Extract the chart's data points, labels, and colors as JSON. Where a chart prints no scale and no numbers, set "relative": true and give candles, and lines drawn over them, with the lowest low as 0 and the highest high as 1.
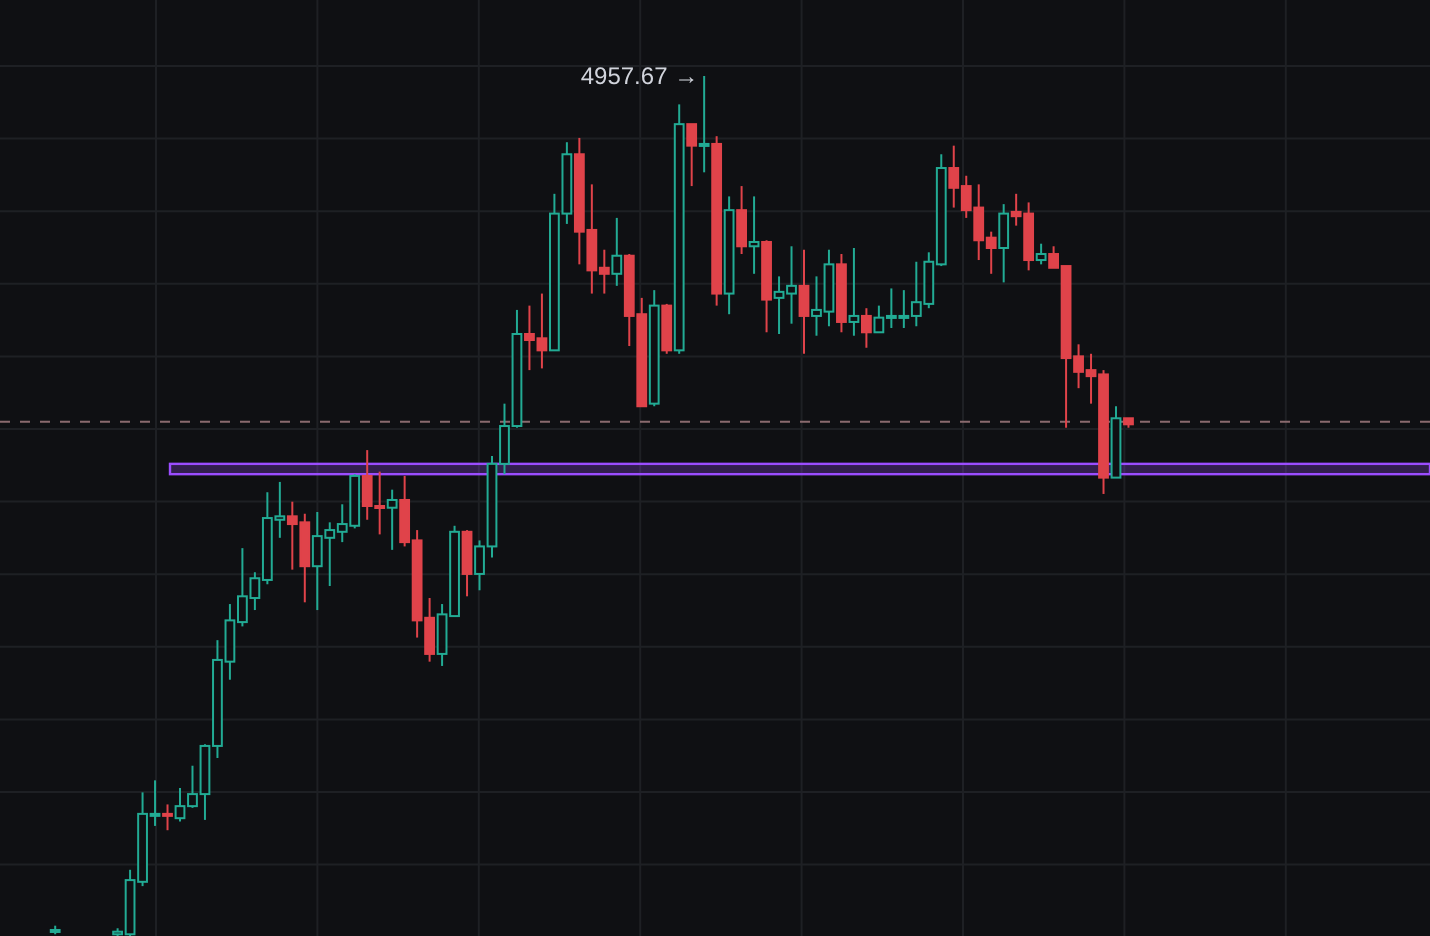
{
  "chart_data": {
    "type": "candlestick",
    "relative": true,
    "grid": true,
    "categories": [
      null,
      null,
      null,
      null,
      null,
      null,
      null,
      null,
      null,
      null,
      null,
      null,
      null,
      null,
      null,
      null,
      null,
      null,
      null,
      null,
      null,
      null,
      null,
      null,
      null,
      null,
      null,
      null,
      null,
      null,
      null,
      null,
      null,
      null,
      null,
      null,
      null,
      null,
      null,
      null,
      null,
      null,
      null,
      null,
      null,
      null,
      null,
      null,
      null,
      null,
      null,
      null,
      null,
      null,
      null,
      null,
      null,
      null,
      null,
      null,
      null,
      null,
      null,
      null,
      null,
      null,
      null,
      null,
      null,
      null,
      null,
      null,
      null,
      null,
      null,
      null,
      null,
      null,
      null,
      null,
      null,
      null,
      null,
      null,
      null,
      null,
      null
    ],
    "ohlc": [
      [
        0.005,
        0.012,
        0.002,
        0.007
      ],
      null,
      null,
      null,
      null,
      [
        0.002,
        0.009,
        0,
        0.005
      ],
      [
        0.002,
        0.077,
        0,
        0.065
      ],
      [
        0.063,
        0.167,
        0.058,
        0.142
      ],
      [
        0.14,
        0.181,
        0.128,
        0.142
      ],
      [
        0.142,
        0.153,
        0.123,
        0.14
      ],
      [
        0.137,
        0.172,
        0.133,
        0.151
      ],
      [
        0.151,
        0.198,
        0.149,
        0.165
      ],
      [
        0.165,
        0.223,
        0.135,
        0.221
      ],
      [
        0.221,
        0.344,
        0.207,
        0.321
      ],
      [
        0.319,
        0.386,
        0.298,
        0.367
      ],
      [
        0.365,
        0.451,
        0.36,
        0.395
      ],
      [
        0.393,
        0.423,
        0.379,
        0.416
      ],
      [
        0.414,
        0.516,
        0.409,
        0.486
      ],
      [
        0.484,
        0.528,
        0.463,
        0.488
      ],
      [
        0.488,
        0.505,
        0.426,
        0.479
      ],
      [
        0.481,
        0.491,
        0.388,
        0.43
      ],
      [
        0.43,
        0.493,
        0.379,
        0.465
      ],
      [
        0.463,
        0.481,
        0.407,
        0.472
      ],
      [
        0.47,
        0.502,
        0.458,
        0.479
      ],
      [
        0.477,
        0.537,
        0.474,
        0.535
      ],
      [
        0.535,
        0.565,
        0.484,
        0.5
      ],
      [
        0.5,
        0.54,
        0.467,
        0.498
      ],
      [
        0.498,
        0.519,
        0.449,
        0.507
      ],
      [
        0.507,
        0.535,
        0.453,
        0.458
      ],
      [
        0.46,
        0.472,
        0.347,
        0.367
      ],
      [
        0.37,
        0.393,
        0.319,
        0.328
      ],
      [
        0.328,
        0.386,
        0.314,
        0.374
      ],
      [
        0.372,
        0.477,
        0.372,
        0.47
      ],
      [
        0.47,
        0.472,
        0.395,
        0.421
      ],
      [
        0.421,
        0.46,
        0.402,
        0.453
      ],
      [
        0.453,
        0.558,
        0.44,
        0.549
      ],
      [
        0.549,
        0.619,
        0.537,
        0.593
      ],
      [
        0.593,
        0.728,
        0.591,
        0.7
      ],
      [
        0.7,
        0.733,
        0.658,
        0.693
      ],
      [
        0.695,
        0.747,
        0.66,
        0.681
      ],
      [
        0.681,
        0.863,
        0.681,
        0.84
      ],
      [
        0.84,
        0.923,
        0.828,
        0.909
      ],
      [
        0.909,
        0.928,
        0.781,
        0.819
      ],
      [
        0.821,
        0.874,
        0.747,
        0.774
      ],
      [
        0.777,
        0.798,
        0.747,
        0.77
      ],
      [
        0.77,
        0.835,
        0.756,
        0.791
      ],
      [
        0.791,
        0.793,
        0.686,
        0.721
      ],
      [
        0.723,
        0.742,
        0.616,
        0.616
      ],
      [
        0.619,
        0.751,
        0.616,
        0.733
      ],
      [
        0.733,
        0.735,
        0.677,
        0.681
      ],
      [
        0.681,
        0.967,
        0.677,
        0.944
      ],
      [
        0.944,
        0.944,
        0.872,
        0.919
      ],
      [
        0.919,
        1,
        0.888,
        0.921
      ],
      [
        0.921,
        0.93,
        0.733,
        0.747
      ],
      [
        0.747,
        0.86,
        0.723,
        0.844
      ],
      [
        0.844,
        0.872,
        0.793,
        0.802
      ],
      [
        0.802,
        0.86,
        0.77,
        0.807
      ],
      [
        0.807,
        0.809,
        0.702,
        0.74
      ],
      [
        0.742,
        0.767,
        0.7,
        0.749
      ],
      [
        0.747,
        0.802,
        0.712,
        0.756
      ],
      [
        0.756,
        0.798,
        0.677,
        0.721
      ],
      [
        0.721,
        0.767,
        0.698,
        0.728
      ],
      [
        0.726,
        0.798,
        0.709,
        0.781
      ],
      [
        0.781,
        0.793,
        0.702,
        0.714
      ],
      [
        0.714,
        0.8,
        0.698,
        0.721
      ],
      [
        0.721,
        0.73,
        0.684,
        0.702
      ],
      [
        0.702,
        0.733,
        0.702,
        0.719
      ],
      [
        0.719,
        0.753,
        0.707,
        0.721
      ],
      [
        0.719,
        0.751,
        0.707,
        0.721
      ],
      [
        0.721,
        0.784,
        0.709,
        0.737
      ],
      [
        0.735,
        0.795,
        0.73,
        0.784
      ],
      [
        0.781,
        0.909,
        0.779,
        0.893
      ],
      [
        0.893,
        0.919,
        0.847,
        0.87
      ],
      [
        0.872,
        0.884,
        0.835,
        0.844
      ],
      [
        0.847,
        0.874,
        0.786,
        0.809
      ],
      [
        0.812,
        0.819,
        0.77,
        0.8
      ],
      [
        0.8,
        0.851,
        0.76,
        0.84
      ],
      [
        0.842,
        0.863,
        0.826,
        0.837
      ],
      [
        0.84,
        0.853,
        0.774,
        0.786
      ],
      [
        0.786,
        0.805,
        0.781,
        0.793
      ],
      [
        0.793,
        0.802,
        0.777,
        0.777
      ],
      [
        0.779,
        0.779,
        0.591,
        0.672
      ],
      [
        0.674,
        0.688,
        0.637,
        0.656
      ],
      [
        0.658,
        0.677,
        0.619,
        0.651
      ],
      [
        0.653,
        0.658,
        0.514,
        0.533
      ],
      [
        0.533,
        0.616,
        0.533,
        0.602
      ],
      [
        0.602,
        0.602,
        0.591,
        0.595
      ]
    ],
    "ref_lines": [
      {
        "axis": "y",
        "value": 0.598,
        "color": "#8a6a6e",
        "line_style": "dashed"
      }
    ],
    "bands": [
      {
        "axis": "y",
        "from": 0.537,
        "to": 0.549,
        "color": "#9b4dff"
      }
    ],
    "annotations": [
      "4957.67 →"
    ]
  }
}
